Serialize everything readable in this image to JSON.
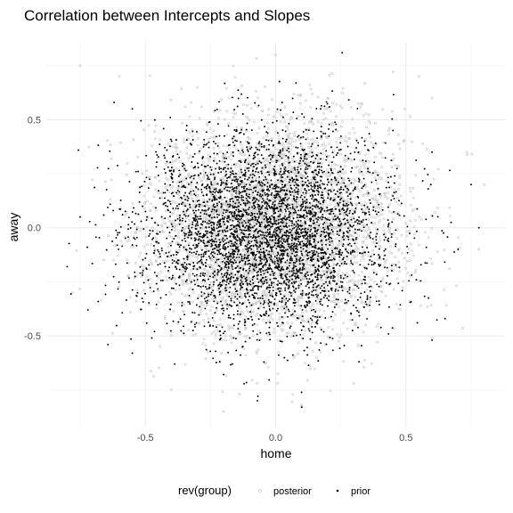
{
  "chart_data": {
    "type": "scatter",
    "title": "Correlation between Intercepts and Slopes",
    "xlabel": "home",
    "ylabel": "away",
    "xlim": [
      -0.88,
      0.88
    ],
    "ylim": [
      -0.92,
      0.86
    ],
    "x_ticks": [
      -0.5,
      0.0,
      0.5
    ],
    "y_ticks": [
      -0.5,
      0.0,
      0.5
    ],
    "x_tick_labels": [
      "-0.5",
      "0.0",
      "0.5"
    ],
    "y_tick_labels": [
      "-0.5",
      "0.0",
      "0.5"
    ],
    "grid": true,
    "legend_position": "bottom",
    "legend_title": "rev(group)",
    "series": [
      {
        "name": "posterior",
        "color": "#c8c8c8",
        "marker": "hollow-circle",
        "mean": [
          0.0,
          0.0
        ],
        "sd": [
          0.24,
          0.24
        ],
        "n_points_estimate": 4000,
        "points": [
          [
            -0.75,
            0.75
          ],
          [
            -0.6,
            0.7
          ],
          [
            0.45,
            0.72
          ],
          [
            0.55,
            0.7
          ],
          [
            0.6,
            0.6
          ],
          [
            -0.2,
            -0.85
          ],
          [
            0.1,
            -0.82
          ],
          [
            -0.4,
            -0.75
          ],
          [
            0.3,
            -0.72
          ],
          [
            0.78,
            -0.1
          ],
          [
            0.8,
            0.2
          ],
          [
            -0.78,
            -0.3
          ],
          [
            0.0,
            0.8
          ],
          [
            -0.3,
            0.65
          ],
          [
            0.2,
            0.6
          ]
        ]
      },
      {
        "name": "prior",
        "color": "#000000",
        "marker": "filled-dot",
        "mean": [
          -0.03,
          -0.02
        ],
        "sd": [
          0.23,
          0.22
        ],
        "n_points_estimate": 4000,
        "points": [
          [
            -0.8,
            -0.18
          ],
          [
            -0.75,
            0.05
          ],
          [
            0.78,
            0.0
          ],
          [
            0.75,
            0.2
          ],
          [
            0.6,
            0.35
          ],
          [
            0.7,
            -0.1
          ],
          [
            -0.62,
            0.58
          ],
          [
            -0.55,
            0.55
          ],
          [
            0.1,
            -0.83
          ],
          [
            -0.07,
            -0.8
          ],
          [
            -0.55,
            -0.58
          ],
          [
            0.32,
            -0.62
          ],
          [
            0.6,
            -0.52
          ],
          [
            0.65,
            -0.42
          ],
          [
            -0.72,
            -0.38
          ],
          [
            0.45,
            0.45
          ]
        ]
      }
    ]
  }
}
